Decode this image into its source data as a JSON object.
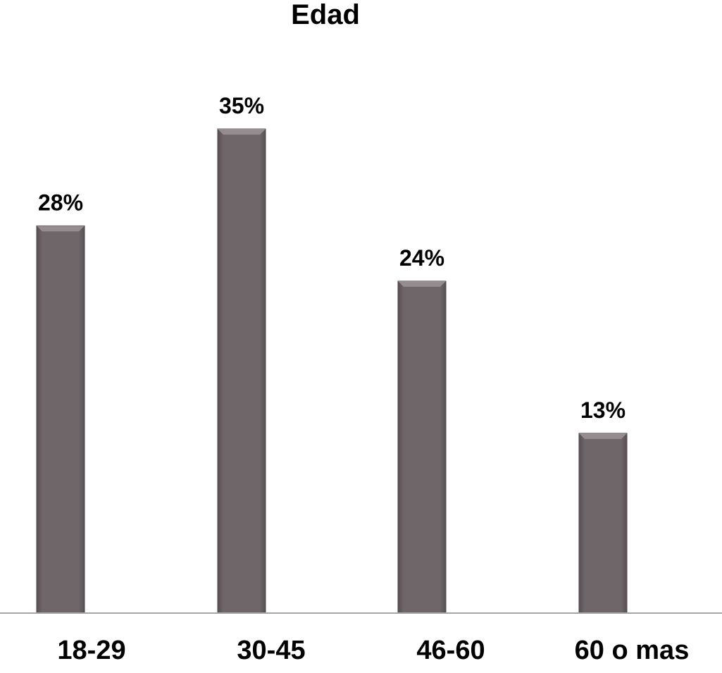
{
  "chart_data": {
    "type": "bar",
    "title": "Edad",
    "categories": [
      "18-29",
      "30-45",
      "46-60",
      "60 o mas"
    ],
    "values": [
      28,
      35,
      24,
      13
    ],
    "value_labels": [
      "28%",
      "35%",
      "24%",
      "13%"
    ],
    "unit": "%",
    "xlabel": "",
    "ylabel": "",
    "ylim": [
      0,
      35
    ],
    "grid": false,
    "legend": "none",
    "colors": {
      "bar": "#6f666a",
      "bar_top": "#958c90",
      "bar_edge": "#4e474a",
      "axis": "#a6a6a6",
      "text": "#000000"
    }
  }
}
